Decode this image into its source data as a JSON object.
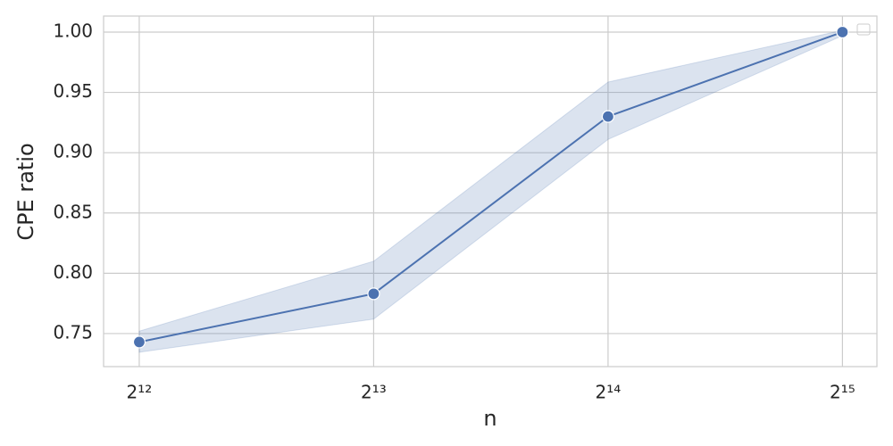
{
  "chart_data": {
    "type": "line",
    "x_label": "n",
    "y_label": "CPE ratio",
    "x": [
      4096,
      8192,
      16384,
      32768
    ],
    "series": [
      {
        "color": "#4c72b0",
        "values": [
          0.743,
          0.783,
          0.93,
          1.0
        ],
        "ci_lower": [
          0.7345,
          0.762,
          0.911,
          0.997
        ],
        "ci_upper": [
          0.752,
          0.81,
          0.9586,
          1.0015
        ]
      }
    ],
    "xscale": "log2",
    "xlim": [
      3686,
      36285
    ],
    "xticks": [
      {
        "value": 4096,
        "label": "2¹²"
      },
      {
        "value": 8192,
        "label": "2¹³"
      },
      {
        "value": 16384,
        "label": "2¹⁴"
      },
      {
        "value": 32768,
        "label": "2¹⁵"
      }
    ],
    "ylim": [
      0.7226,
      1.0133
    ],
    "yticks": [
      0.75,
      {
        "value": 0.8,
        "label": "0.80"
      },
      0.85,
      {
        "value": 0.9,
        "label": "0.90"
      },
      0.95,
      {
        "value": 1.0,
        "label": "1.00"
      }
    ],
    "grid": true
  }
}
